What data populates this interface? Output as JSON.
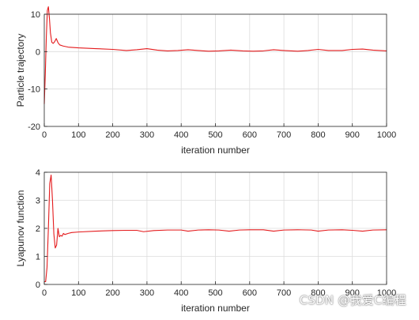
{
  "chart_data": [
    {
      "type": "line",
      "title": "",
      "xlabel": "iteration number",
      "ylabel": "Particle trajectory",
      "xlim": [
        0,
        1000
      ],
      "ylim": [
        -20,
        10
      ],
      "xticks": [
        "0",
        "100",
        "200",
        "300",
        "400",
        "500",
        "600",
        "700",
        "800",
        "900",
        "1000"
      ],
      "yticks": [
        "-20",
        "-10",
        "0",
        "10"
      ],
      "grid": true,
      "line_color": "#e41a1c",
      "series": [
        {
          "x": [
            0,
            3,
            6,
            9,
            12,
            15,
            18,
            22,
            26,
            30,
            35,
            40,
            45,
            55,
            70,
            100,
            150,
            200,
            240,
            270,
            300,
            330,
            360,
            390,
            420,
            450,
            480,
            510,
            545,
            580,
            610,
            640,
            670,
            700,
            740,
            770,
            800,
            830,
            870,
            900,
            930,
            960,
            1000
          ],
          "y": [
            -14,
            -6,
            4,
            11,
            12,
            9,
            5,
            2.5,
            2.2,
            2.6,
            3.5,
            2.4,
            1.8,
            1.5,
            1.2,
            1.0,
            0.8,
            0.6,
            0.3,
            0.5,
            0.8,
            0.4,
            0.2,
            0.3,
            0.5,
            0.3,
            0.1,
            0.2,
            0.4,
            0.2,
            0.1,
            0.2,
            0.5,
            0.3,
            0.1,
            0.3,
            0.6,
            0.3,
            0.3,
            0.6,
            0.7,
            0.4,
            0.2
          ]
        }
      ]
    },
    {
      "type": "line",
      "title": "",
      "xlabel": "iteration number",
      "ylabel": "Lyapunov function",
      "xlim": [
        0,
        1000
      ],
      "ylim": [
        0,
        4
      ],
      "xticks": [
        "0",
        "100",
        "200",
        "300",
        "400",
        "500",
        "600",
        "700",
        "800",
        "900",
        "1000"
      ],
      "yticks": [
        "0",
        "1",
        "2",
        "3",
        "4"
      ],
      "grid": true,
      "line_color": "#e41a1c",
      "series": [
        {
          "x": [
            0,
            4,
            8,
            12,
            16,
            20,
            24,
            28,
            32,
            36,
            40,
            44,
            48,
            52,
            56,
            60,
            70,
            80,
            100,
            150,
            200,
            240,
            270,
            290,
            320,
            360,
            400,
            420,
            450,
            480,
            510,
            540,
            570,
            600,
            640,
            670,
            700,
            740,
            780,
            800,
            830,
            870,
            900,
            930,
            960,
            1000
          ],
          "y": [
            0.1,
            0.1,
            0.6,
            2.0,
            3.6,
            3.9,
            3.0,
            1.8,
            1.3,
            1.4,
            2.0,
            1.7,
            1.75,
            1.72,
            1.82,
            1.78,
            1.82,
            1.85,
            1.87,
            1.9,
            1.92,
            1.93,
            1.93,
            1.88,
            1.92,
            1.94,
            1.94,
            1.9,
            1.94,
            1.95,
            1.94,
            1.9,
            1.94,
            1.95,
            1.95,
            1.9,
            1.94,
            1.95,
            1.94,
            1.9,
            1.94,
            1.95,
            1.93,
            1.9,
            1.94,
            1.95
          ]
        }
      ]
    }
  ],
  "watermark": "CSDN @我爱C编程"
}
